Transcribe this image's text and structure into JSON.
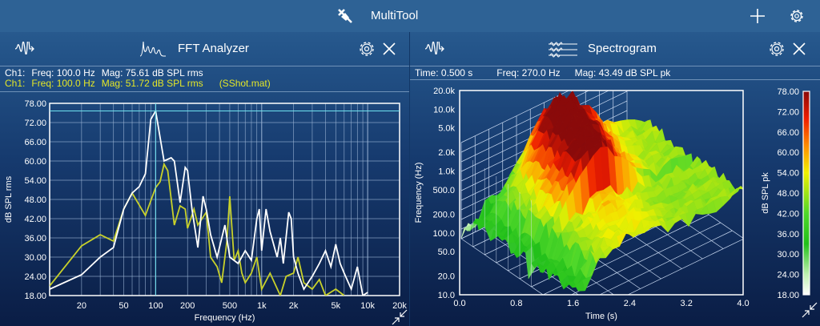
{
  "app": {
    "title": "MultiTool",
    "icons": [
      "tool-icon",
      "plus-icon",
      "gear-icon"
    ]
  },
  "left": {
    "title": "FFT Analyzer",
    "info1": {
      "ch": "Ch1:",
      "freq": "Freq: 100.0 Hz",
      "mag": "Mag: 75.61 dB SPL rms"
    },
    "info2": {
      "ch": "Ch1:",
      "freq": "Freq: 100.0 Hz",
      "mag": "Mag: 51.72 dB SPL rms",
      "file": "(SShot.mat)"
    }
  },
  "right": {
    "title": "Spectrogram",
    "info": {
      "time": "Time: 0.500 s",
      "freq": "Freq: 270.0 Hz",
      "mag": "Mag: 43.49 dB SPL pk"
    }
  },
  "colors": {
    "accent": "#2e6295",
    "series_white": "#ffffff",
    "series_yellow": "#c8d12a",
    "cursor": "#6fe3f0"
  },
  "chart_data": [
    {
      "type": "line",
      "xlabel": "Frequency (Hz)",
      "ylabel": "dB SPL rms",
      "xscale": "log",
      "xlim": [
        10,
        20000
      ],
      "ylim": [
        18,
        78
      ],
      "xticks": [
        {
          "v": 20,
          "l": "20"
        },
        {
          "v": 50,
          "l": "50"
        },
        {
          "v": 100,
          "l": "100"
        },
        {
          "v": 200,
          "l": "200"
        },
        {
          "v": 500,
          "l": "500"
        },
        {
          "v": 1000,
          "l": "1k"
        },
        {
          "v": 2000,
          "l": "2k"
        },
        {
          "v": 5000,
          "l": "5k"
        },
        {
          "v": 10000,
          "l": "10k"
        },
        {
          "v": 20000,
          "l": "20k"
        }
      ],
      "yticks": [
        "78.00",
        "72.00",
        "66.00",
        "60.00",
        "54.00",
        "48.00",
        "42.00",
        "36.00",
        "30.00",
        "24.00",
        "18.00"
      ],
      "grid": true,
      "cursor": {
        "x": 100,
        "y": 75.61
      },
      "series": [
        {
          "color": "#ffffff",
          "points": [
            [
              10,
              20
            ],
            [
              20,
              24.5
            ],
            [
              30,
              30
            ],
            [
              40,
              33
            ],
            [
              50,
              45
            ],
            [
              60,
              50
            ],
            [
              70,
              52
            ],
            [
              80,
              56
            ],
            [
              90,
              73
            ],
            [
              100,
              75.6
            ],
            [
              120,
              60
            ],
            [
              140,
              61
            ],
            [
              150,
              60
            ],
            [
              170,
              47
            ],
            [
              190,
              58
            ],
            [
              200,
              57
            ],
            [
              220,
              45
            ],
            [
              250,
              33
            ],
            [
              280,
              49
            ],
            [
              300,
              45
            ],
            [
              330,
              37
            ],
            [
              380,
              30
            ],
            [
              450,
              40
            ],
            [
              500,
              30
            ],
            [
              600,
              28
            ],
            [
              700,
              32
            ],
            [
              800,
              29
            ],
            [
              900,
              42
            ],
            [
              950,
              45
            ],
            [
              1000,
              32
            ],
            [
              1100,
              45
            ],
            [
              1200,
              38
            ],
            [
              1400,
              30
            ],
            [
              1500,
              36
            ],
            [
              1600,
              28
            ],
            [
              1800,
              44
            ],
            [
              1900,
              42
            ],
            [
              2000,
              30
            ],
            [
              2200,
              25
            ],
            [
              2500,
              20
            ],
            [
              3000,
              24
            ],
            [
              3500,
              28
            ],
            [
              4000,
              32
            ],
            [
              4500,
              27
            ],
            [
              5000,
              34
            ],
            [
              5500,
              28
            ],
            [
              6000,
              25
            ],
            [
              7000,
              20
            ],
            [
              8000,
              27
            ],
            [
              9000,
              18
            ],
            [
              10000,
              19
            ]
          ]
        },
        {
          "color": "#c8d12a",
          "points": [
            [
              10,
              21
            ],
            [
              20,
              33.5
            ],
            [
              30,
              37
            ],
            [
              40,
              35
            ],
            [
              50,
              45
            ],
            [
              60,
              50
            ],
            [
              80,
              43
            ],
            [
              100,
              51.7
            ],
            [
              110,
              53.5
            ],
            [
              120,
              59
            ],
            [
              130,
              57
            ],
            [
              150,
              40
            ],
            [
              170,
              46
            ],
            [
              190,
              45
            ],
            [
              200,
              39
            ],
            [
              230,
              45
            ],
            [
              250,
              40
            ],
            [
              300,
              44
            ],
            [
              330,
              30
            ],
            [
              380,
              27
            ],
            [
              420,
              22
            ],
            [
              470,
              35
            ],
            [
              500,
              49
            ],
            [
              550,
              29
            ],
            [
              600,
              32
            ],
            [
              650,
              25
            ],
            [
              700,
              22
            ],
            [
              800,
              25
            ],
            [
              900,
              30
            ],
            [
              1000,
              20
            ],
            [
              1200,
              25
            ],
            [
              1500,
              18
            ],
            [
              1700,
              24
            ],
            [
              2000,
              25
            ],
            [
              2200,
              30
            ],
            [
              2500,
              22
            ],
            [
              3000,
              20
            ],
            [
              3500,
              23
            ],
            [
              4000,
              18
            ],
            [
              5000,
              20
            ],
            [
              6000,
              18
            ]
          ]
        }
      ]
    },
    {
      "type": "heatmap",
      "subtype": "3d-surface",
      "xlabel": "Time (s)",
      "ylabel": "Frequency (Hz)",
      "zlabel": "dB SPL pk",
      "xlim": [
        0,
        4
      ],
      "ylim": [
        10,
        20000
      ],
      "yscale": "log",
      "zlim": [
        18,
        78
      ],
      "xticks": [
        "0.0",
        "0.8",
        "1.6",
        "2.4",
        "3.2",
        "4.0"
      ],
      "yticks": [
        {
          "v": 20000,
          "l": "20.0k"
        },
        {
          "v": 10000,
          "l": "10.0k"
        },
        {
          "v": 5000,
          "l": "5.0k"
        },
        {
          "v": 2000,
          "l": "2.0k"
        },
        {
          "v": 1000,
          "l": "1.0k"
        },
        {
          "v": 500,
          "l": "500.0"
        },
        {
          "v": 200,
          "l": "200.0"
        },
        {
          "v": 100,
          "l": "100.0"
        },
        {
          "v": 50,
          "l": "50.0"
        },
        {
          "v": 20,
          "l": "20.0"
        },
        {
          "v": 10,
          "l": "10.0"
        }
      ],
      "colorbar": {
        "ticks": [
          "78.00",
          "72.00",
          "66.00",
          "60.00",
          "54.00",
          "48.00",
          "42.00",
          "36.00",
          "30.00",
          "24.00",
          "18.00"
        ],
        "stops": [
          [
            18,
            "#ffffff"
          ],
          [
            24,
            "#bff0b0"
          ],
          [
            33,
            "#22c01a"
          ],
          [
            42,
            "#4fd82a"
          ],
          [
            54,
            "#f0f000"
          ],
          [
            62,
            "#ff8c00"
          ],
          [
            70,
            "#ee1c00"
          ],
          [
            78,
            "#8a0a0a"
          ]
        ]
      }
    }
  ]
}
